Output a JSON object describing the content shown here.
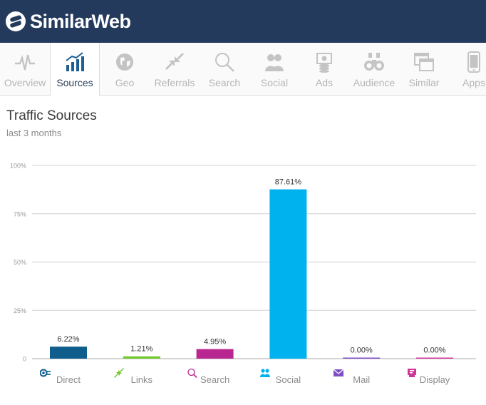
{
  "brand": {
    "name": "SimilarWeb"
  },
  "tabs": [
    {
      "label": "Overview",
      "icon": "pulse-icon",
      "active": false
    },
    {
      "label": "Sources",
      "icon": "bar-chart-icon",
      "active": true
    },
    {
      "label": "Geo",
      "icon": "globe-icon",
      "active": false
    },
    {
      "label": "Referrals",
      "icon": "arrows-icon",
      "active": false
    },
    {
      "label": "Search",
      "icon": "magnifier-icon",
      "active": false
    },
    {
      "label": "Social",
      "icon": "people-icon",
      "active": false
    },
    {
      "label": "Ads",
      "icon": "ads-icon",
      "active": false
    },
    {
      "label": "Audience",
      "icon": "binoculars-icon",
      "active": false
    },
    {
      "label": "Similar",
      "icon": "windows-icon",
      "active": false
    },
    {
      "label": "Apps",
      "icon": "phone-icon",
      "active": false
    }
  ],
  "section": {
    "title": "Traffic Sources",
    "subtitle": "last 3 months"
  },
  "colors": {
    "header": "#233a5c",
    "active_icon": "#1e5e91"
  },
  "chart_data": {
    "type": "bar",
    "categories": [
      "Direct",
      "Links",
      "Search",
      "Social",
      "Mail",
      "Display"
    ],
    "values": [
      6.22,
      1.21,
      4.95,
      87.61,
      0.0,
      0.0
    ],
    "value_labels": [
      "6.22%",
      "1.21%",
      "4.95%",
      "87.61%",
      "0.00%",
      "0.00%"
    ],
    "colors": [
      "#0f5d8c",
      "#74c72e",
      "#b8268f",
      "#00b2ee",
      "#7e4ec5",
      "#d0359a"
    ],
    "icons": [
      "direct-icon",
      "links-icon",
      "search-icon",
      "social-icon",
      "mail-icon",
      "display-icon"
    ],
    "yticks": [
      "0",
      "25%",
      "50%",
      "75%",
      "100%"
    ],
    "ylim": [
      0,
      100
    ],
    "grid": true
  }
}
